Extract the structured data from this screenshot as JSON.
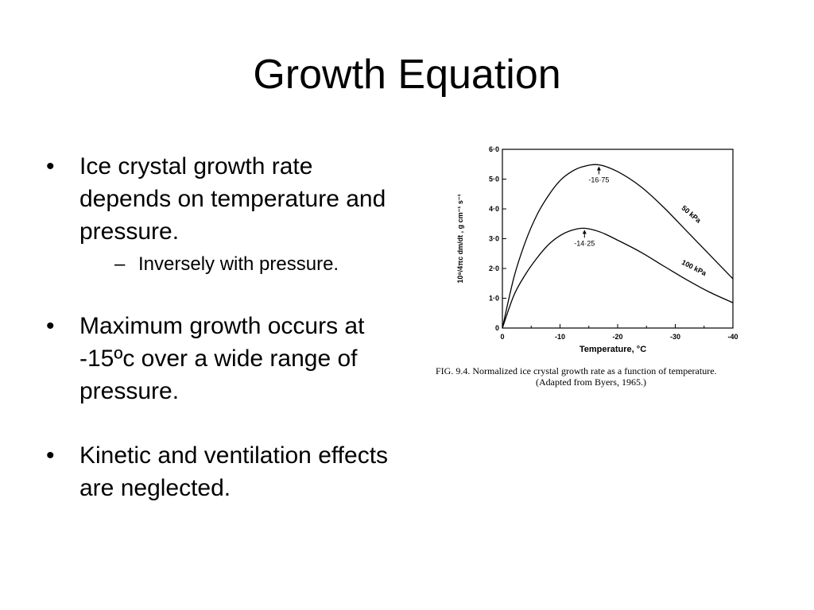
{
  "slide": {
    "title": "Growth Equation",
    "bullets": [
      {
        "text": "Ice crystal growth rate depends on temperature and pressure.",
        "sub": [
          "Inversely with pressure."
        ]
      },
      {
        "text": "Maximum growth occurs at -15ºc over a wide range of pressure."
      },
      {
        "text": "Kinetic and ventilation effects are neglected."
      }
    ],
    "bullet_glyph": "•",
    "sub_glyph": "–"
  },
  "chart_data": {
    "type": "line",
    "xlabel": "Temperature, °C",
    "ylabel": "10⁸/4πc dm/dt , g cm⁻¹ s⁻¹",
    "xlim": [
      0,
      -40
    ],
    "ylim": [
      0,
      6
    ],
    "xticks": [
      "0",
      "-10",
      "-20",
      "-30",
      "-40"
    ],
    "yticks": [
      "0",
      "1·0",
      "2·0",
      "3·0",
      "4·0",
      "5·0",
      "6·0"
    ],
    "series": [
      {
        "name": "50 kPa",
        "x": [
          0,
          -2,
          -4,
          -6,
          -8,
          -10,
          -12,
          -14,
          -16.75,
          -20,
          -24,
          -28,
          -32,
          -36,
          -40
        ],
        "y": [
          0,
          1.7,
          2.9,
          3.8,
          4.45,
          4.95,
          5.25,
          5.42,
          5.48,
          5.25,
          4.75,
          4.05,
          3.25,
          2.45,
          1.65
        ]
      },
      {
        "name": "100 kPa",
        "x": [
          0,
          -2,
          -4,
          -6,
          -8,
          -10,
          -12,
          -14.25,
          -17,
          -20,
          -24,
          -28,
          -32,
          -36,
          -40
        ],
        "y": [
          0,
          1.1,
          1.8,
          2.35,
          2.8,
          3.1,
          3.28,
          3.35,
          3.22,
          2.95,
          2.55,
          2.08,
          1.62,
          1.2,
          0.85
        ]
      }
    ],
    "annotations": [
      {
        "text": "-16·75",
        "x": -16.75,
        "y": 5.48
      },
      {
        "text": "-14·25",
        "x": -14.25,
        "y": 3.35
      }
    ],
    "caption": [
      "FIG. 9.4. Normalized ice crystal growth rate as a function of temperature.",
      "(Adapted from Byers, 1965.)"
    ]
  }
}
